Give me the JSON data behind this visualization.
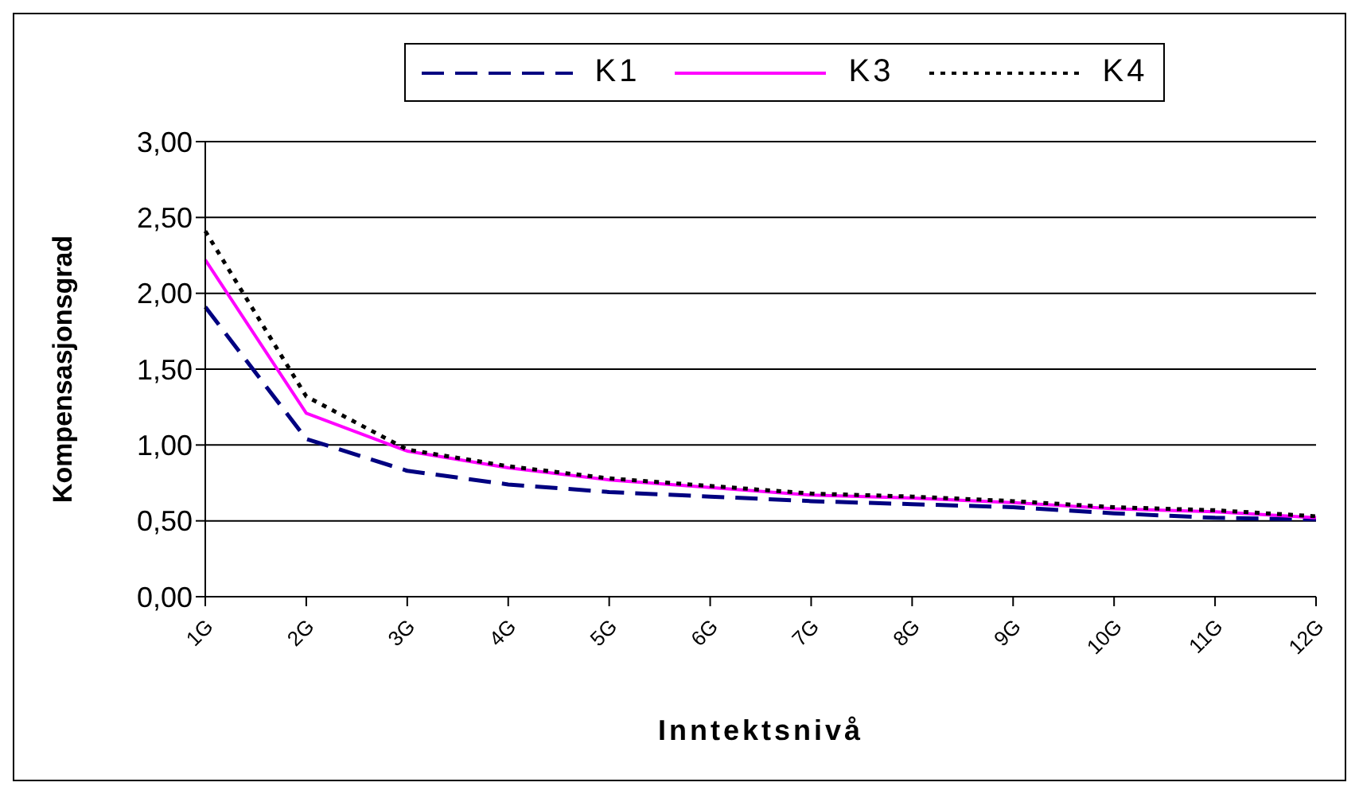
{
  "chart_data": {
    "type": "line",
    "xlabel": "Inntektsnivå",
    "ylabel": "Kompensasjonsgrad",
    "categories": [
      "1G",
      "2G",
      "3G",
      "4G",
      "5G",
      "6G",
      "7G",
      "8G",
      "9G",
      "10G",
      "11G",
      "12G"
    ],
    "series": [
      {
        "name": "K1",
        "color": "#000080",
        "line_style": "dashed",
        "values": [
          1.91,
          1.04,
          0.83,
          0.74,
          0.69,
          0.66,
          0.63,
          0.61,
          0.59,
          0.55,
          0.52,
          0.51
        ]
      },
      {
        "name": "K3",
        "color": "#ff00ff",
        "line_style": "solid",
        "values": [
          2.22,
          1.21,
          0.96,
          0.85,
          0.77,
          0.72,
          0.67,
          0.65,
          0.62,
          0.58,
          0.56,
          0.52
        ]
      },
      {
        "name": "K4",
        "color": "#000000",
        "line_style": "dotted",
        "values": [
          2.41,
          1.32,
          0.97,
          0.86,
          0.78,
          0.73,
          0.68,
          0.66,
          0.63,
          0.59,
          0.57,
          0.53
        ]
      }
    ],
    "ylim": [
      0,
      3
    ],
    "yticks": [
      {
        "value": 0,
        "label": "0,00"
      },
      {
        "value": 0.5,
        "label": "0,50"
      },
      {
        "value": 1,
        "label": "1,00"
      },
      {
        "value": 1.5,
        "label": "1,50"
      },
      {
        "value": 2,
        "label": "2,00"
      },
      {
        "value": 2.5,
        "label": "2,50"
      },
      {
        "value": 3,
        "label": "3,00"
      }
    ],
    "grid": "y",
    "legend": "top",
    "marker": "none"
  }
}
